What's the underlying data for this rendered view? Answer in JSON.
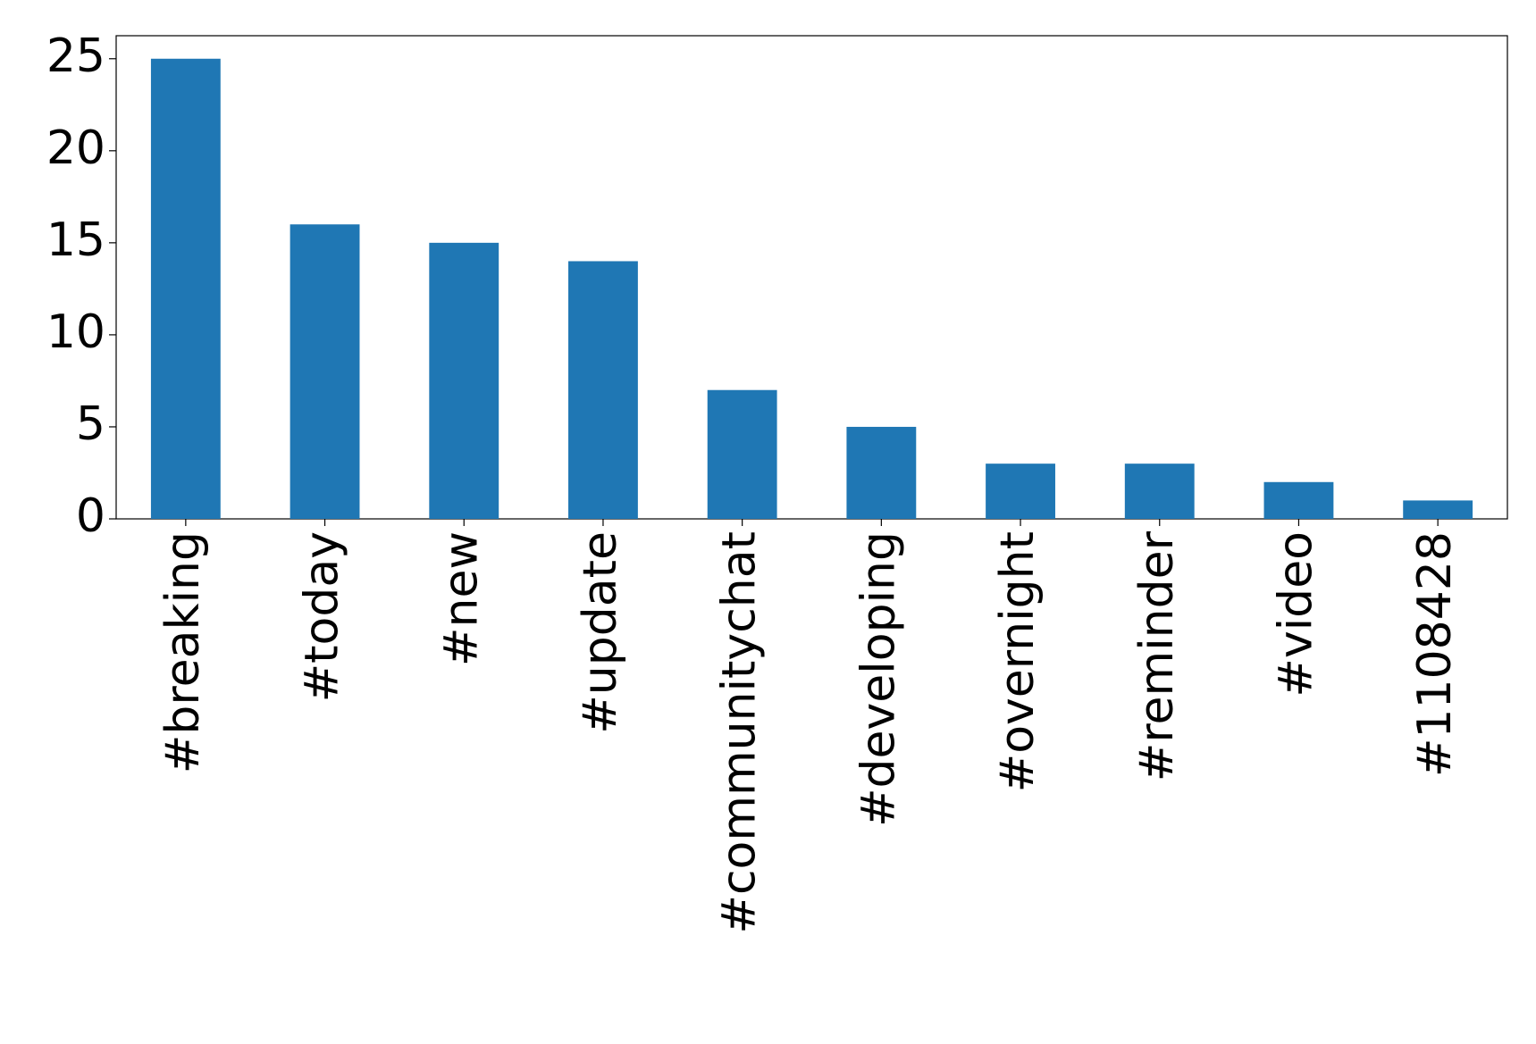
{
  "chart_data": {
    "type": "bar",
    "categories": [
      "#breaking",
      "#today",
      "#new",
      "#update",
      "#communitychat",
      "#developing",
      "#overnight",
      "#reminder",
      "#video",
      "#1108428"
    ],
    "values": [
      25,
      16,
      15,
      14,
      7,
      5,
      3,
      3,
      2,
      1
    ],
    "color": "#1f77b4",
    "ylim": [
      0,
      26.25
    ],
    "yticks": [
      0,
      5,
      10,
      15,
      20,
      25
    ],
    "grid": false
  }
}
